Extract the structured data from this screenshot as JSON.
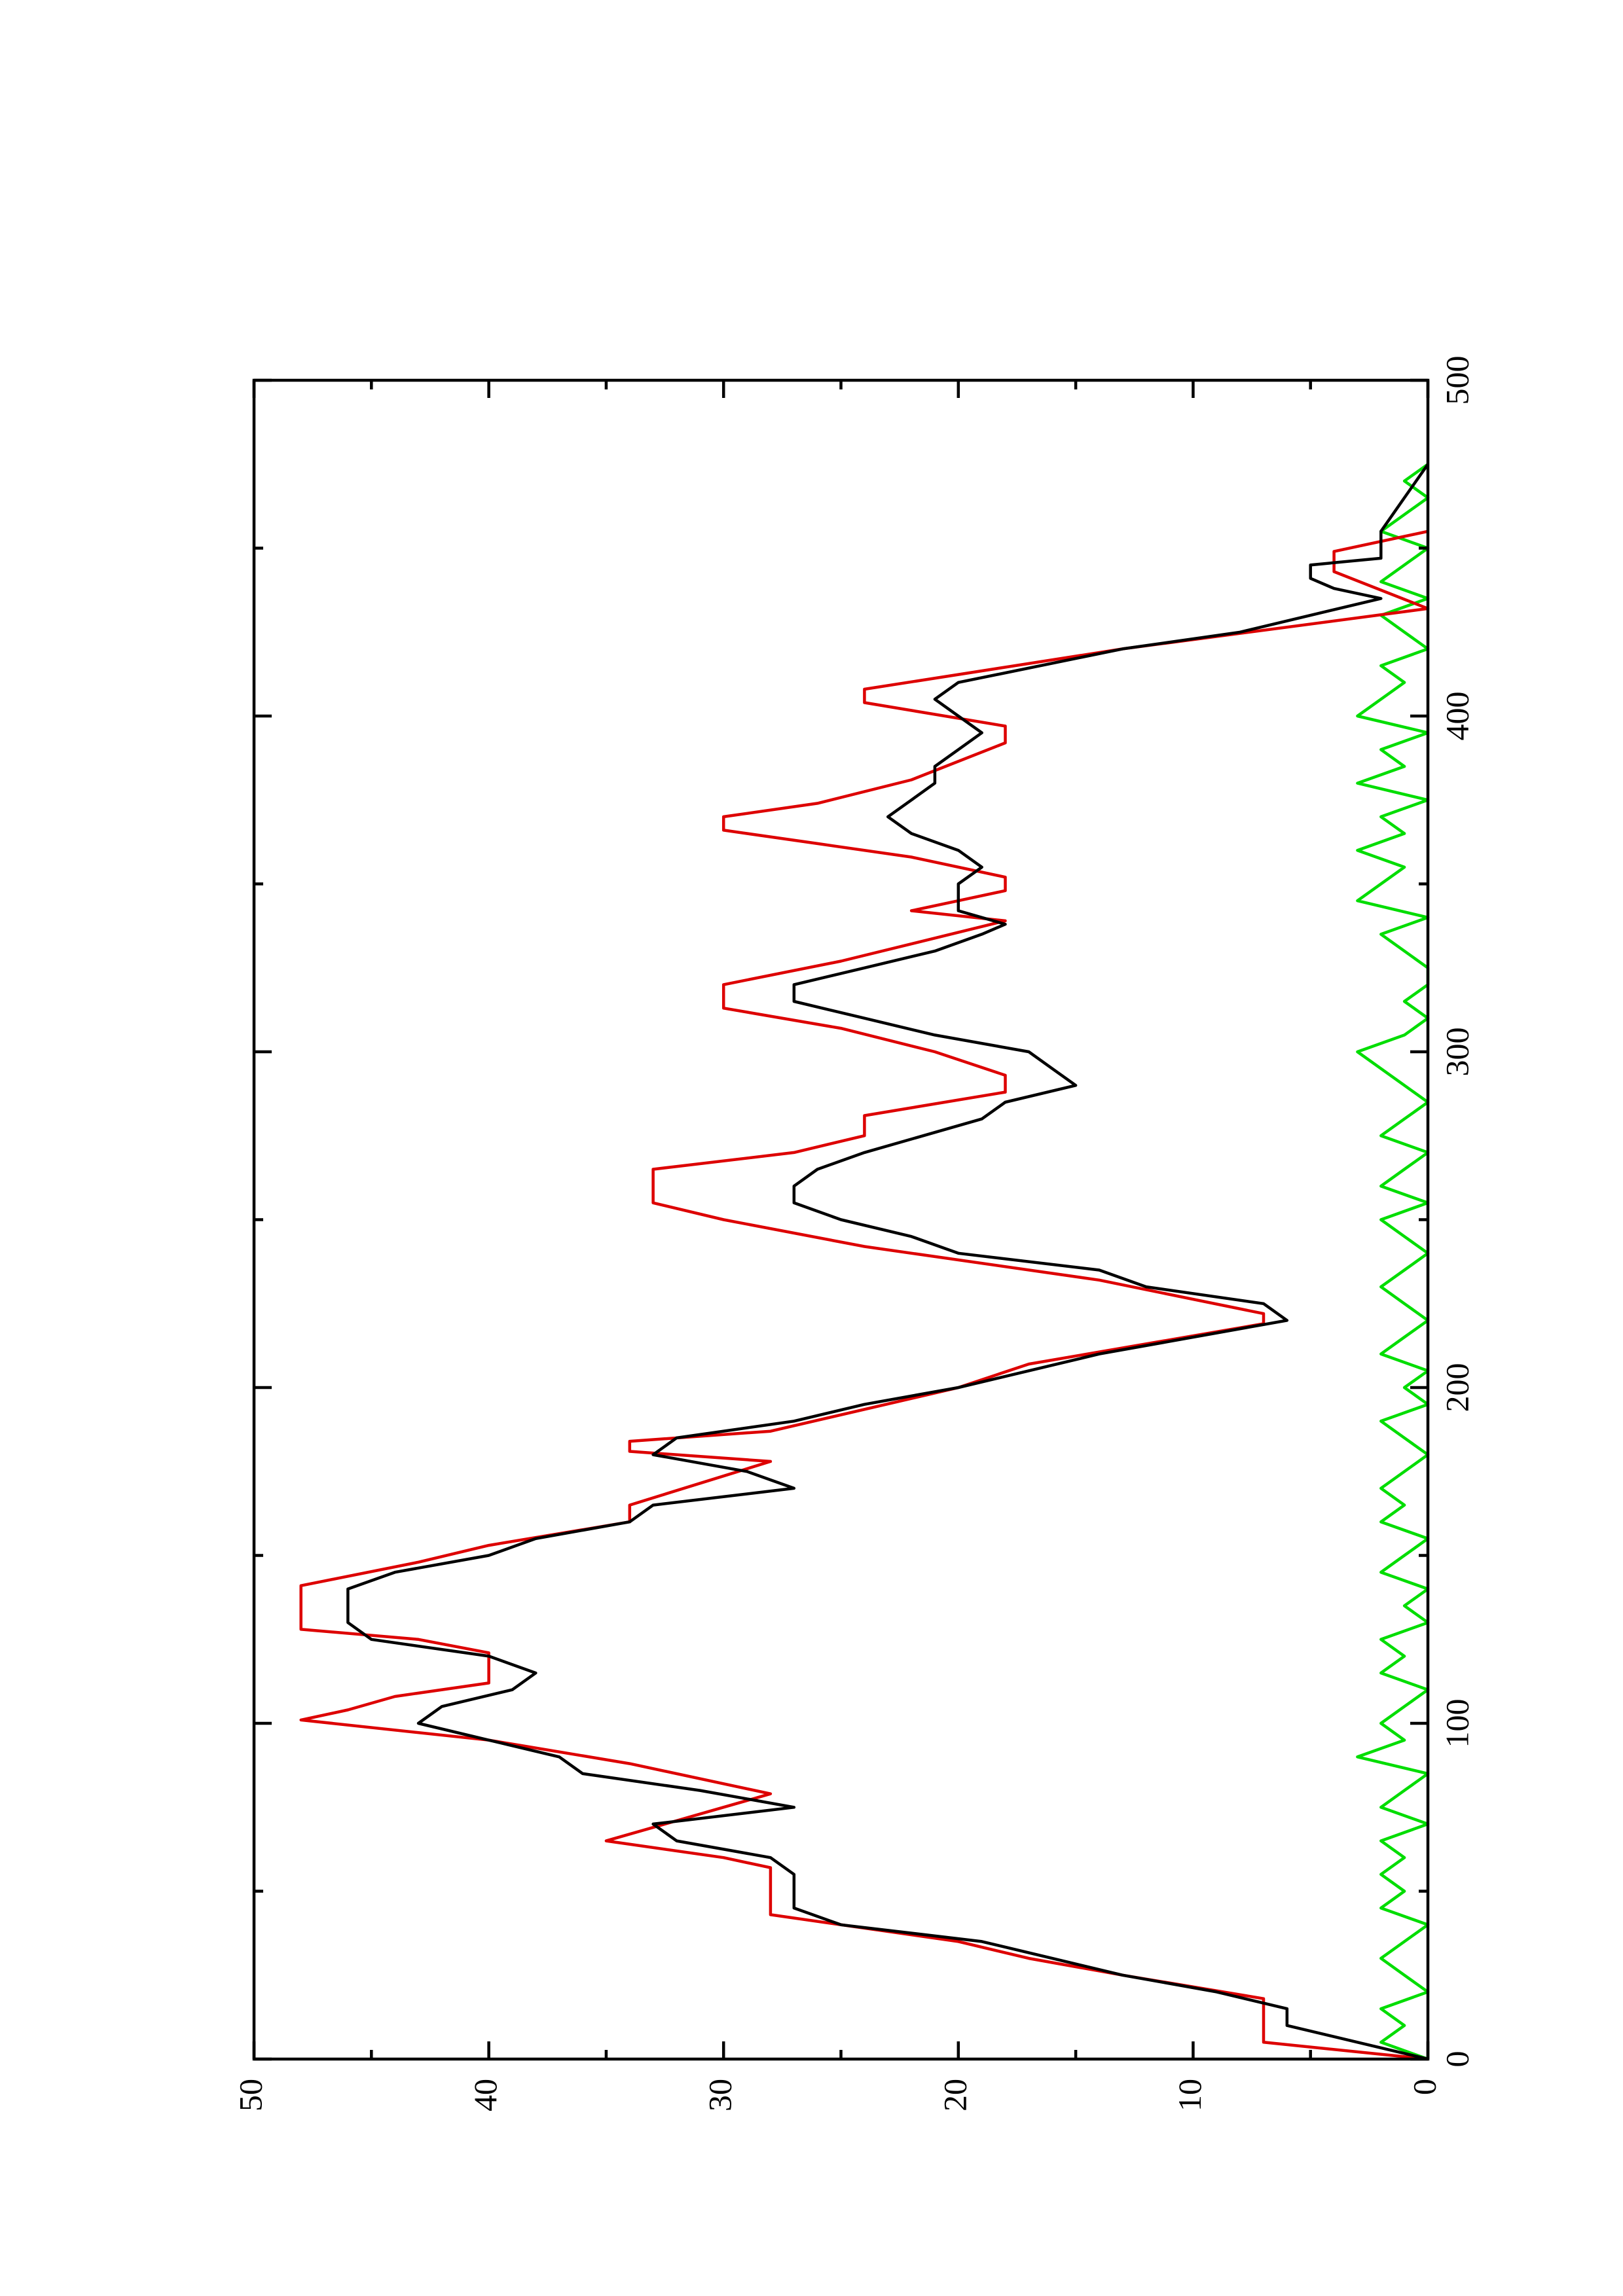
{
  "chart_data": {
    "type": "line",
    "rotated": true,
    "xlim": [
      0,
      500
    ],
    "xticks": [
      0,
      100,
      200,
      300,
      400,
      500
    ],
    "xminorticks": [
      50,
      150,
      250,
      350,
      450
    ],
    "ylim": [
      0,
      50
    ],
    "yticks": [
      0,
      10,
      20,
      30,
      40,
      50
    ],
    "yminorticks": [
      5,
      15,
      25,
      35,
      45
    ],
    "series": [
      {
        "color": "#00dd00",
        "x": [
          0,
          5,
          10,
          15,
          20,
          25,
          30,
          35,
          40,
          45,
          50,
          55,
          60,
          65,
          70,
          75,
          80,
          85,
          90,
          95,
          100,
          105,
          110,
          115,
          120,
          125,
          130,
          135,
          140,
          145,
          150,
          155,
          160,
          165,
          170,
          175,
          180,
          185,
          190,
          195,
          200,
          205,
          210,
          215,
          220,
          225,
          230,
          235,
          240,
          245,
          250,
          255,
          260,
          265,
          270,
          275,
          280,
          285,
          290,
          295,
          300,
          305,
          310,
          315,
          320,
          325,
          330,
          335,
          340,
          345,
          350,
          355,
          360,
          365,
          370,
          375,
          380,
          385,
          390,
          395,
          400,
          405,
          410,
          415,
          420,
          425,
          430,
          435,
          440,
          445,
          450,
          455,
          460,
          465,
          470,
          475
        ],
        "values": [
          0,
          2,
          1,
          2,
          0,
          1,
          2,
          1,
          0,
          2,
          1,
          2,
          1,
          2,
          0,
          2,
          1,
          0,
          3,
          1,
          2,
          1,
          0,
          2,
          1,
          2,
          0,
          1,
          0,
          2,
          1,
          0,
          2,
          1,
          2,
          1,
          0,
          1,
          2,
          0,
          1,
          0,
          2,
          1,
          0,
          1,
          2,
          1,
          0,
          1,
          2,
          0,
          2,
          1,
          0,
          2,
          1,
          0,
          1,
          2,
          3,
          1,
          0,
          1,
          0,
          0,
          1,
          2,
          0,
          3,
          2,
          1,
          3,
          1,
          2,
          0,
          3,
          1,
          2,
          0,
          3,
          2,
          1,
          2,
          0,
          1,
          2,
          0,
          2,
          1,
          0,
          2,
          1,
          0,
          1,
          0
        ]
      },
      {
        "color": "#dd0000",
        "x": [
          0,
          5,
          18,
          25,
          30,
          35,
          43,
          57,
          60,
          65,
          79,
          88,
          95,
          101,
          104,
          108,
          112,
          121,
          125,
          128,
          141,
          148,
          153,
          160,
          165,
          178,
          181,
          184,
          187,
          200,
          207,
          219,
          222,
          232,
          242,
          250,
          255,
          265,
          270,
          275,
          281,
          288,
          293,
          300,
          307,
          313,
          320,
          327,
          339,
          342,
          345,
          348,
          352,
          358,
          362,
          366,
          370,
          374,
          381,
          392,
          397,
          404,
          408,
          420,
          432,
          443,
          449,
          455
        ],
        "values": [
          0,
          7,
          7,
          13,
          17,
          20,
          28,
          28,
          30,
          35,
          28,
          34,
          40,
          48,
          46,
          44,
          40,
          40,
          43,
          48,
          48,
          43,
          40,
          34,
          34,
          28,
          34,
          34,
          28,
          20,
          17,
          7,
          7,
          14,
          24,
          30,
          33,
          33,
          27,
          24,
          24,
          18,
          18,
          21,
          25,
          30,
          30,
          25,
          18,
          22,
          20,
          18,
          18,
          22,
          26,
          30,
          30,
          26,
          22,
          18,
          18,
          24,
          24,
          13,
          0,
          4,
          4,
          0
        ]
      },
      {
        "color": "#000000",
        "x": [
          0,
          5,
          10,
          15,
          20,
          25,
          30,
          35,
          40,
          45,
          55,
          60,
          65,
          70,
          75,
          80,
          85,
          90,
          95,
          100,
          105,
          110,
          115,
          120,
          125,
          130,
          140,
          145,
          150,
          155,
          160,
          165,
          170,
          175,
          180,
          185,
          190,
          195,
          200,
          210,
          220,
          225,
          230,
          235,
          240,
          245,
          250,
          255,
          260,
          265,
          270,
          280,
          285,
          290,
          295,
          300,
          305,
          310,
          315,
          320,
          325,
          330,
          335,
          338,
          342,
          350,
          355,
          360,
          365,
          370,
          375,
          380,
          385,
          390,
          395,
          400,
          405,
          410,
          420,
          425,
          430,
          435,
          438,
          441,
          445,
          447,
          455,
          465,
          475
        ],
        "values": [
          0,
          3,
          6,
          6,
          9,
          13,
          16,
          19,
          25,
          27,
          27,
          28,
          32,
          33,
          27,
          31,
          36,
          37,
          40,
          43,
          42,
          39,
          38,
          40,
          45,
          46,
          46,
          44,
          40,
          38,
          34,
          33,
          27,
          29,
          33,
          32,
          27,
          24,
          20,
          14,
          6,
          7,
          12,
          14,
          20,
          22,
          25,
          27,
          27,
          26,
          24,
          19,
          18,
          15,
          16,
          17,
          21,
          24,
          27,
          27,
          24,
          21,
          19,
          18,
          20,
          20,
          19,
          20,
          22,
          23,
          22,
          21,
          21,
          20,
          19,
          20,
          21,
          20,
          13,
          8,
          5,
          2,
          4,
          5,
          5,
          2,
          2,
          1,
          0
        ]
      }
    ]
  }
}
